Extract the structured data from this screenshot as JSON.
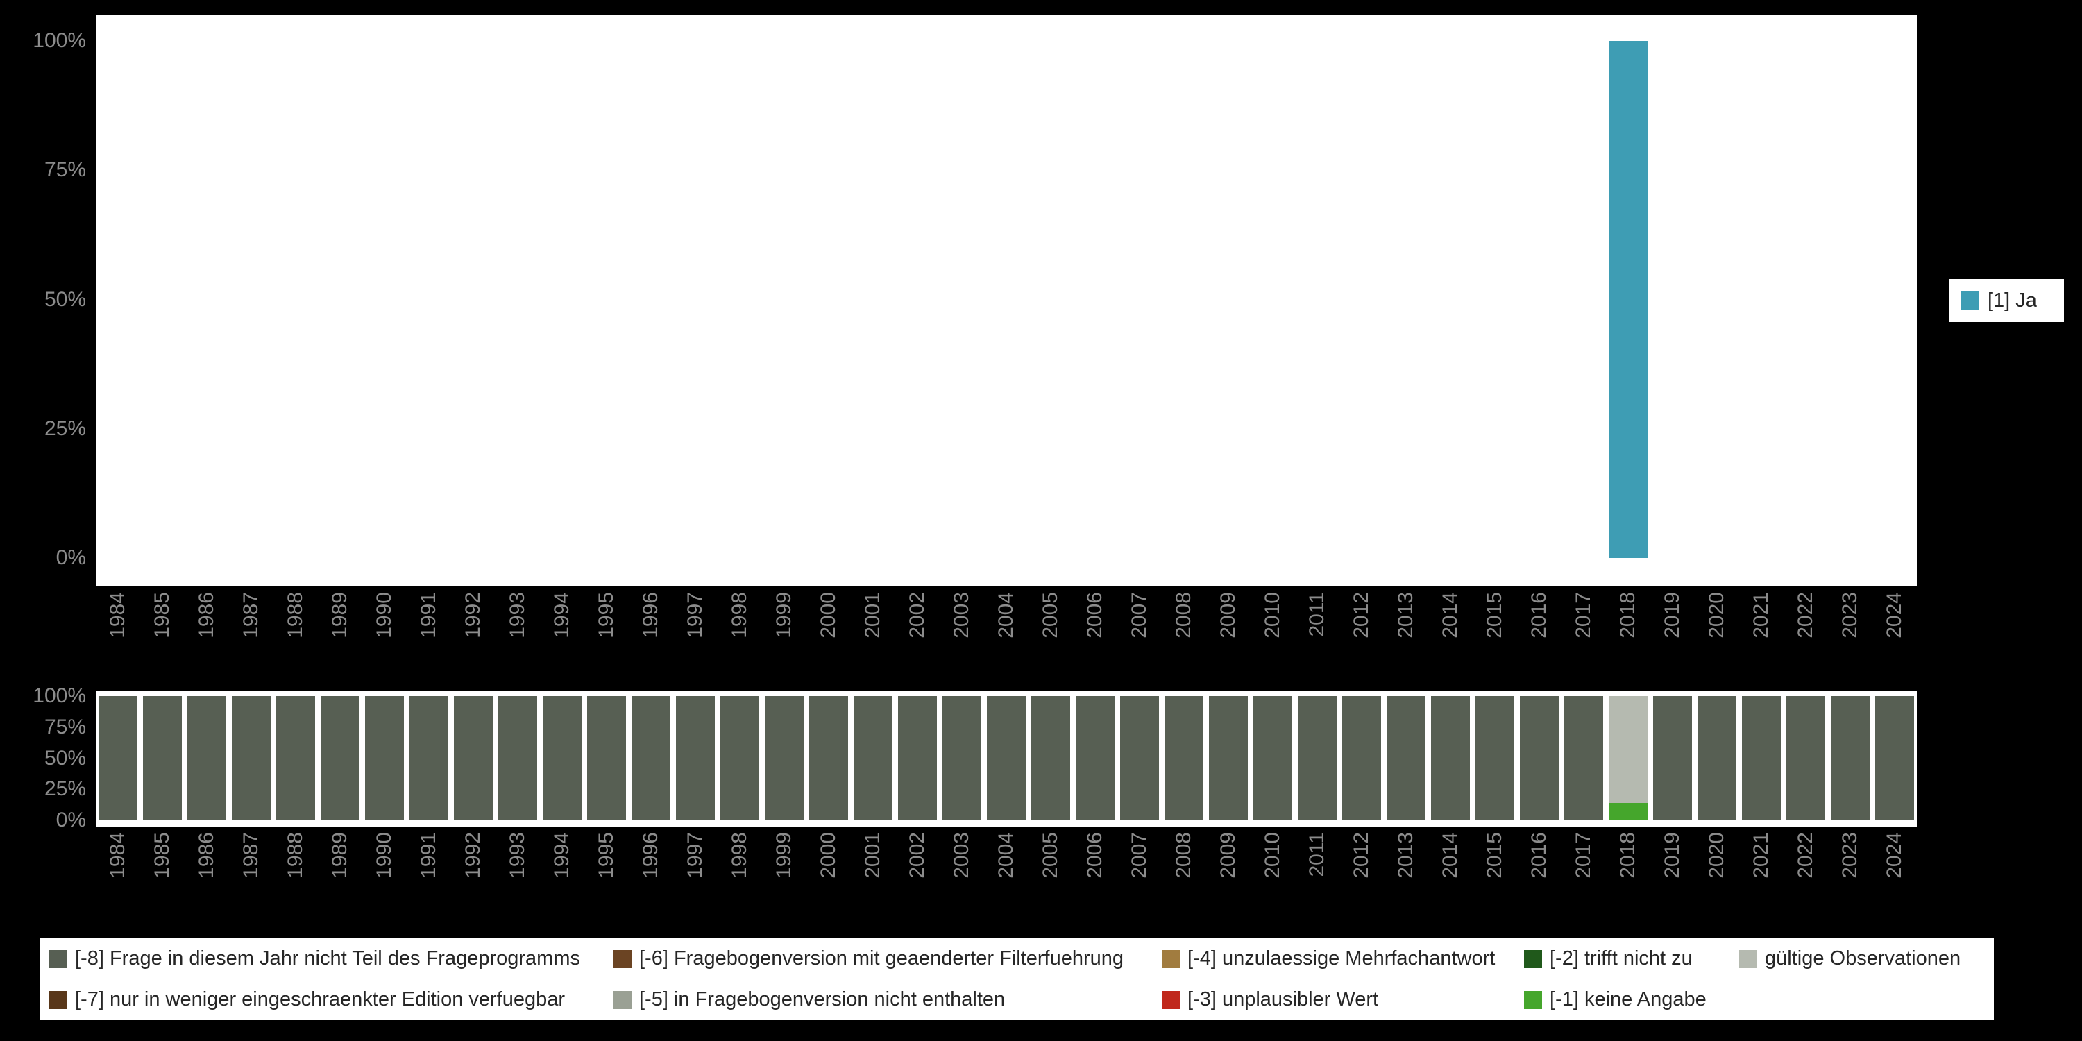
{
  "page": {
    "background": "#000000",
    "plot_background": "#ffffff",
    "axis_text_color": "#8c8c8c",
    "legend_text_color": "#262626"
  },
  "legend_top": {
    "items": [
      {
        "label": "[1] Ja",
        "color": "#3e9db4"
      }
    ]
  },
  "legend_bottom": {
    "items": [
      {
        "label": "[-8] Frage in diesem Jahr nicht Teil des Frageprogramms",
        "color": "#575f53"
      },
      {
        "label": "[-6] Fragebogenversion mit geaenderter Filterfuehrung",
        "color": "#6b4423"
      },
      {
        "label": "[-4] unzulaessige Mehrfachantwort",
        "color": "#a17c3f"
      },
      {
        "label": "[-2] trifft nicht zu",
        "color": "#20591b"
      },
      {
        "label": "gültige Observationen",
        "color": "#b5bab0"
      },
      {
        "label": "[-7] nur in weniger eingeschraenkter Edition verfuegbar",
        "color": "#59371a"
      },
      {
        "label": "[-5] in Fragebogenversion nicht enthalten",
        "color": "#9aa094"
      },
      {
        "label": "[-3] unplausibler Wert",
        "color": "#c0281c"
      },
      {
        "label": "[-1] keine Angabe",
        "color": "#45a62c"
      }
    ]
  },
  "chart_data": [
    {
      "type": "bar",
      "title": "",
      "xlabel": "",
      "ylabel": "",
      "ylim": [
        0,
        100
      ],
      "grid": false,
      "legend_position": "right",
      "yticks_top_to_bottom": [
        "100%",
        "75%",
        "50%",
        "25%",
        "0%"
      ],
      "categories": [
        "1984",
        "1985",
        "1986",
        "1987",
        "1988",
        "1989",
        "1990",
        "1991",
        "1992",
        "1993",
        "1994",
        "1995",
        "1996",
        "1997",
        "1998",
        "1999",
        "2000",
        "2001",
        "2002",
        "2003",
        "2004",
        "2005",
        "2006",
        "2007",
        "2008",
        "2009",
        "2010",
        "2011",
        "2012",
        "2013",
        "2014",
        "2015",
        "2016",
        "2017",
        "2018",
        "2019",
        "2020",
        "2021",
        "2022",
        "2023",
        "2024"
      ],
      "series": [
        {
          "name": "[1] Ja",
          "color": "#3e9db4",
          "values": [
            0,
            0,
            0,
            0,
            0,
            0,
            0,
            0,
            0,
            0,
            0,
            0,
            0,
            0,
            0,
            0,
            0,
            0,
            0,
            0,
            0,
            0,
            0,
            0,
            0,
            0,
            0,
            0,
            0,
            0,
            0,
            0,
            0,
            0,
            100,
            0,
            0,
            0,
            0,
            0,
            0
          ]
        }
      ]
    },
    {
      "type": "stacked-bar-percent",
      "title": "",
      "xlabel": "",
      "ylabel": "",
      "ylim": [
        0,
        100
      ],
      "grid": false,
      "legend_position": "bottom",
      "yticks_top_to_bottom": [
        "100%",
        "75%",
        "50%",
        "25%",
        "0%"
      ],
      "categories": [
        "1984",
        "1985",
        "1986",
        "1987",
        "1988",
        "1989",
        "1990",
        "1991",
        "1992",
        "1993",
        "1994",
        "1995",
        "1996",
        "1997",
        "1998",
        "1999",
        "2000",
        "2001",
        "2002",
        "2003",
        "2004",
        "2005",
        "2006",
        "2007",
        "2008",
        "2009",
        "2010",
        "2011",
        "2012",
        "2013",
        "2014",
        "2015",
        "2016",
        "2017",
        "2018",
        "2019",
        "2020",
        "2021",
        "2022",
        "2023",
        "2024"
      ],
      "series": [
        {
          "name": "[-8] Frage in diesem Jahr nicht Teil des Frageprogramms",
          "color": "#575f53",
          "values": [
            100,
            100,
            100,
            100,
            100,
            100,
            100,
            100,
            100,
            100,
            100,
            100,
            100,
            100,
            100,
            100,
            100,
            100,
            100,
            100,
            100,
            100,
            100,
            100,
            100,
            100,
            100,
            100,
            100,
            100,
            100,
            100,
            100,
            100,
            0,
            100,
            100,
            100,
            100,
            100,
            100
          ]
        },
        {
          "name": "[-1] keine Angabe",
          "color": "#45a62c",
          "values": [
            0,
            0,
            0,
            0,
            0,
            0,
            0,
            0,
            0,
            0,
            0,
            0,
            0,
            0,
            0,
            0,
            0,
            0,
            0,
            0,
            0,
            0,
            0,
            0,
            0,
            0,
            0,
            0,
            0,
            0,
            0,
            0,
            0,
            0,
            14,
            0,
            0,
            0,
            0,
            0,
            0
          ]
        },
        {
          "name": "gültige Observationen",
          "color": "#b5bab0",
          "values": [
            0,
            0,
            0,
            0,
            0,
            0,
            0,
            0,
            0,
            0,
            0,
            0,
            0,
            0,
            0,
            0,
            0,
            0,
            0,
            0,
            0,
            0,
            0,
            0,
            0,
            0,
            0,
            0,
            0,
            0,
            0,
            0,
            0,
            0,
            86,
            0,
            0,
            0,
            0,
            0,
            0
          ]
        }
      ]
    }
  ]
}
